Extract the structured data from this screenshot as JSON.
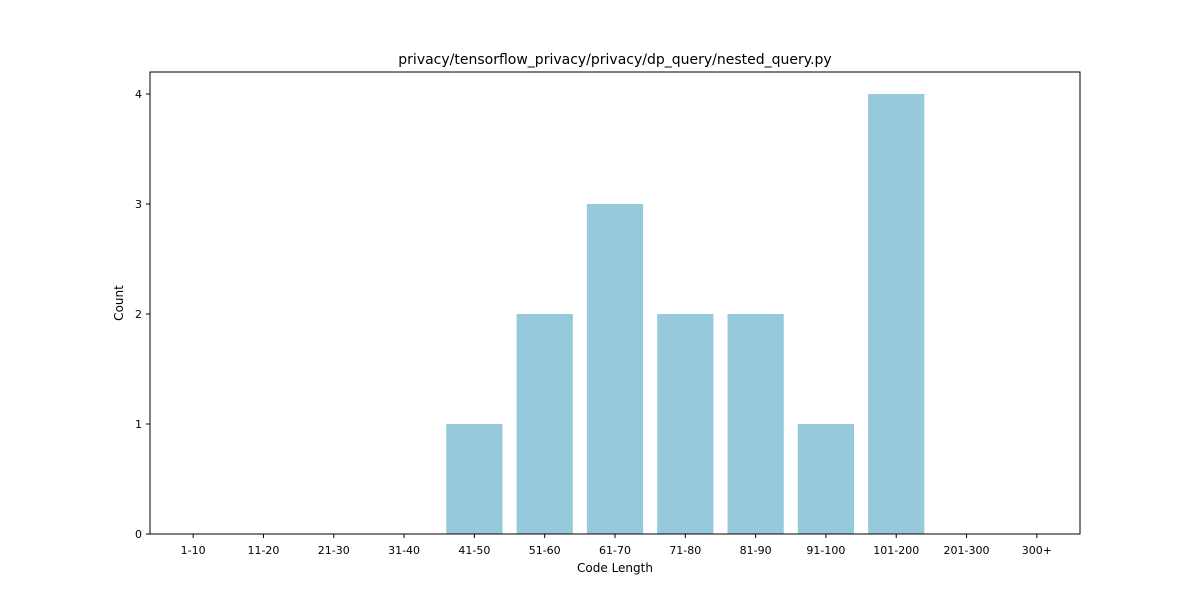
{
  "chart_data": {
    "type": "bar",
    "title": "privacy/tensorflow_privacy/privacy/dp_query/nested_query.py",
    "xlabel": "Code Length",
    "ylabel": "Count",
    "categories": [
      "1-10",
      "11-20",
      "21-30",
      "31-40",
      "41-50",
      "51-60",
      "61-70",
      "71-80",
      "81-90",
      "91-100",
      "101-200",
      "201-300",
      "300+"
    ],
    "values": [
      0,
      0,
      0,
      0,
      1,
      2,
      3,
      2,
      2,
      1,
      4,
      0,
      0
    ],
    "yticks": [
      0,
      1,
      2,
      3,
      4
    ],
    "ylim": [
      0,
      4.2
    ],
    "grid": false,
    "bar_color": "#96c9dc"
  }
}
